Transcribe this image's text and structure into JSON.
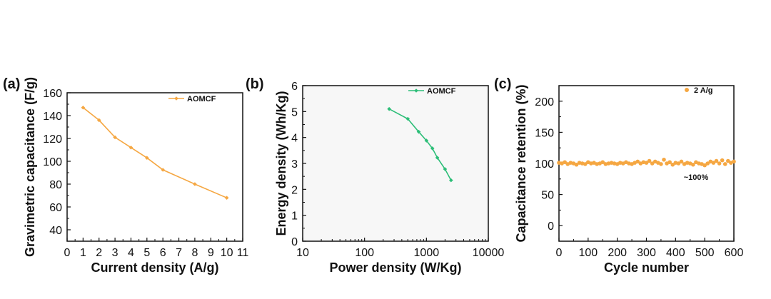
{
  "chart_data": [
    {
      "panel": "(a)",
      "type": "line",
      "xlabel": "Current density (A/g)",
      "ylabel": "Gravimetric capacitance (F/g)",
      "xlim": [
        0,
        11
      ],
      "ylim": [
        30,
        160
      ],
      "xticks": [
        0,
        1,
        2,
        3,
        4,
        5,
        6,
        7,
        8,
        9,
        10,
        11
      ],
      "yticks": [
        40,
        60,
        80,
        100,
        120,
        140,
        160
      ],
      "color": "#F5A742",
      "legend_position": "top-right",
      "series": [
        {
          "name": "AOMCF",
          "x": [
            1,
            2,
            3,
            4,
            5,
            6,
            8,
            10
          ],
          "y": [
            147,
            136,
            121,
            112,
            103,
            92.5,
            80,
            68
          ]
        }
      ]
    },
    {
      "panel": "(b)",
      "type": "line",
      "xscale": "log",
      "xlabel": "Power density (W/Kg)",
      "ylabel": "Energy density (Wh/Kg)",
      "xlim": [
        10,
        10000
      ],
      "ylim": [
        0,
        6
      ],
      "xticks": [
        10,
        100,
        1000,
        10000
      ],
      "xtick_labels": [
        "10",
        "100",
        "1000",
        "10000"
      ],
      "yticks": [
        0,
        1,
        2,
        3,
        4,
        5,
        6
      ],
      "color": "#2DBE78",
      "legend_position": "top-right",
      "series": [
        {
          "name": "AOMCF",
          "x": [
            250,
            500,
            750,
            1000,
            1250,
            1500,
            2000,
            2500
          ],
          "y": [
            5.1,
            4.72,
            4.22,
            3.88,
            3.58,
            3.22,
            2.78,
            2.35
          ]
        }
      ]
    },
    {
      "panel": "(c)",
      "type": "scatter",
      "xlabel": "Cycle number",
      "ylabel": "Capacitance retention (%)",
      "xlim": [
        0,
        600
      ],
      "ylim": [
        -25,
        225
      ],
      "xticks": [
        0,
        100,
        200,
        300,
        400,
        500,
        600
      ],
      "yticks": [
        0,
        50,
        100,
        150,
        200
      ],
      "color": "#F5A742",
      "legend_position": "top-right",
      "annotation": "~100%",
      "series": [
        {
          "name": "2 A/g",
          "x": [
            0,
            10,
            20,
            30,
            40,
            50,
            60,
            70,
            80,
            90,
            100,
            110,
            120,
            130,
            140,
            150,
            160,
            170,
            180,
            190,
            200,
            210,
            220,
            230,
            240,
            250,
            260,
            270,
            280,
            290,
            300,
            310,
            320,
            330,
            340,
            350,
            360,
            370,
            380,
            390,
            400,
            410,
            420,
            430,
            440,
            450,
            460,
            470,
            480,
            490,
            500,
            510,
            520,
            530,
            540,
            550,
            560,
            570,
            580,
            590,
            600
          ],
          "y": [
            101,
            100,
            102,
            99,
            101,
            100,
            98,
            101,
            100,
            99,
            102,
            100,
            101,
            99,
            100,
            102,
            99,
            100,
            101,
            100,
            99,
            101,
            100,
            102,
            100,
            99,
            101,
            103,
            100,
            102,
            101,
            104,
            100,
            103,
            101,
            99,
            106,
            100,
            102,
            98,
            101,
            100,
            103,
            99,
            101,
            100,
            98,
            102,
            100,
            99,
            97,
            100,
            103,
            101,
            104,
            100,
            105,
            99,
            104,
            101,
            103
          ]
        }
      ]
    }
  ]
}
